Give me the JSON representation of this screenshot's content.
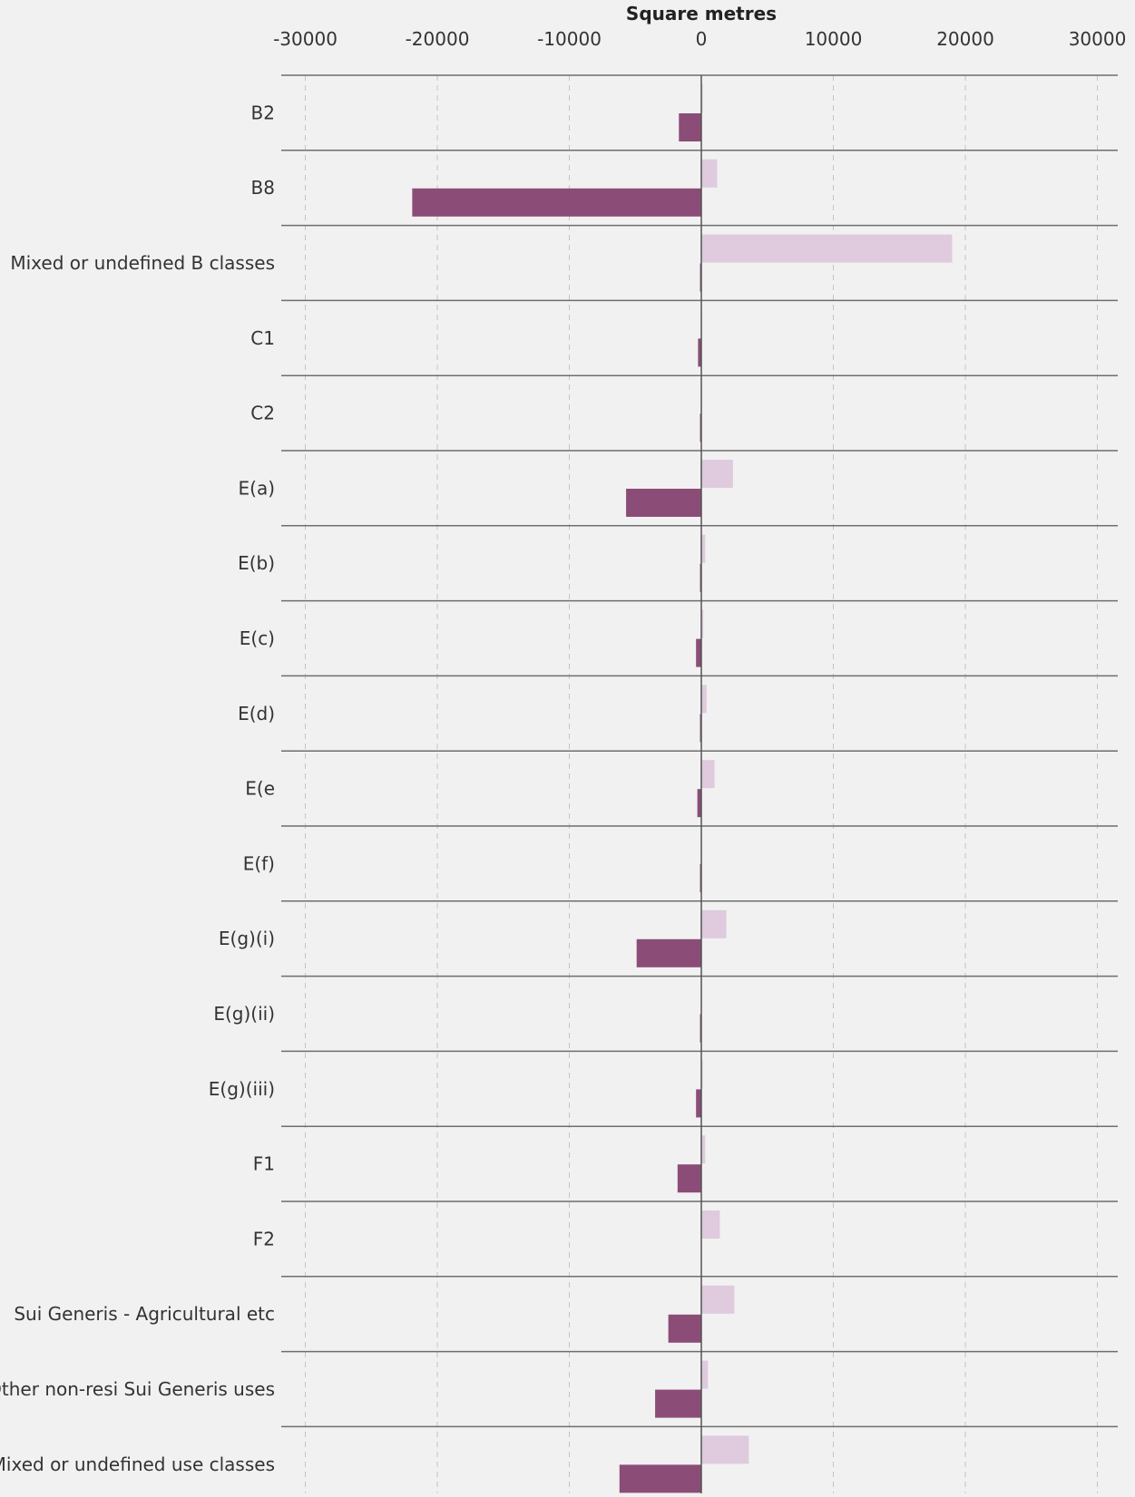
{
  "chart_data": {
    "type": "bar",
    "orientation": "horizontal",
    "xlabel": "Square metres",
    "xlim": [
      -30000,
      30000
    ],
    "ticks": [
      -30000,
      -20000,
      -10000,
      0,
      10000,
      20000,
      30000
    ],
    "tick_labels": [
      "-30000",
      "-20000",
      "-10000",
      "0",
      "10000",
      "20000",
      "30000"
    ],
    "grid": true,
    "categories": [
      "B2",
      "B8",
      "Mixed or undefined B classes",
      "C1",
      "C2",
      "E(a)",
      "E(b)",
      "E(c)",
      "E(d)",
      "E(e",
      "E(f)",
      "E(g)(i)",
      "E(g)(ii)",
      "E(g)(iii)",
      "F1",
      "F2",
      "Sui Generis - Agricultural etc",
      "Other non-resi Sui Generis uses",
      "Mixed or undefined use classes"
    ],
    "series": [
      {
        "color": "#dfcbdd",
        "values": [
          100,
          1200,
          19000,
          50,
          50,
          2400,
          300,
          150,
          400,
          1000,
          50,
          1900,
          50,
          100,
          300,
          1400,
          2500,
          500,
          3600
        ]
      },
      {
        "color": "#8b4d77",
        "values": [
          -1700,
          -21900,
          -100,
          -250,
          -100,
          -5700,
          -100,
          -400,
          -100,
          -300,
          -100,
          -4900,
          -100,
          -400,
          -1800,
          0,
          -2500,
          -3500,
          -6200
        ]
      }
    ]
  }
}
